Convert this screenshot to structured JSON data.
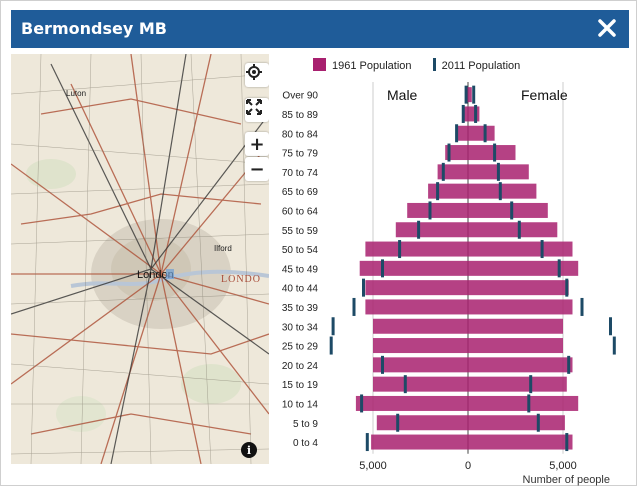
{
  "dialog": {
    "title": "Bermondsey MB",
    "close_icon": "close-icon"
  },
  "map": {
    "place_labels": [
      "Luton",
      "Ilford",
      "London",
      "LONDO"
    ],
    "controls": {
      "locate": "locate-icon",
      "fullscreen": "fullscreen-icon",
      "zoom_in": "+",
      "zoom_out": "−",
      "info": "i"
    }
  },
  "legend": {
    "series1": "1961 Population",
    "series2": "2011 Population"
  },
  "chart_data": {
    "type": "bar",
    "orientation": "population-pyramid",
    "categories": [
      "Over 90",
      "85 to 89",
      "80 to 84",
      "75 to 79",
      "70 to 74",
      "65 to 69",
      "60 to 64",
      "55 to 59",
      "50 to 54",
      "45 to 49",
      "40 to 44",
      "35 to 39",
      "30 to 34",
      "25 to 29",
      "20 to 24",
      "15 to 19",
      "10 to 14",
      "5 to 9",
      "0 to 4"
    ],
    "left_label": "Male",
    "right_label": "Female",
    "series": [
      {
        "name": "1961 Population",
        "male": [
          100,
          300,
          550,
          1200,
          1600,
          2100,
          3200,
          3800,
          5400,
          5700,
          5400,
          5400,
          5000,
          5000,
          5000,
          5000,
          5900,
          4800,
          5100
        ],
        "female": [
          200,
          600,
          1400,
          2500,
          3200,
          3600,
          4200,
          4700,
          5500,
          5800,
          5300,
          5500,
          5000,
          5000,
          5500,
          5200,
          5800,
          5100,
          5500
        ]
      },
      {
        "name": "2011 Population",
        "male": [
          100,
          250,
          600,
          1000,
          1300,
          1600,
          2000,
          2600,
          3600,
          4500,
          5500,
          6000,
          7100,
          7200,
          4500,
          3300,
          5600,
          3700,
          5300
        ],
        "female": [
          300,
          400,
          900,
          1400,
          1600,
          1700,
          2300,
          2700,
          3900,
          4800,
          5200,
          6000,
          7500,
          7700,
          5300,
          3300,
          3200,
          3700,
          5200
        ]
      }
    ],
    "x_ticks": [
      "5,000",
      "0",
      "5,000"
    ],
    "xlabel": "Number of people",
    "xlim": [
      -6500,
      6500
    ],
    "colors": {
      "bar": "#a8206f",
      "marker": "#1d4a66",
      "grid": "#cccccc"
    },
    "grid": true,
    "legend_position": "top"
  }
}
